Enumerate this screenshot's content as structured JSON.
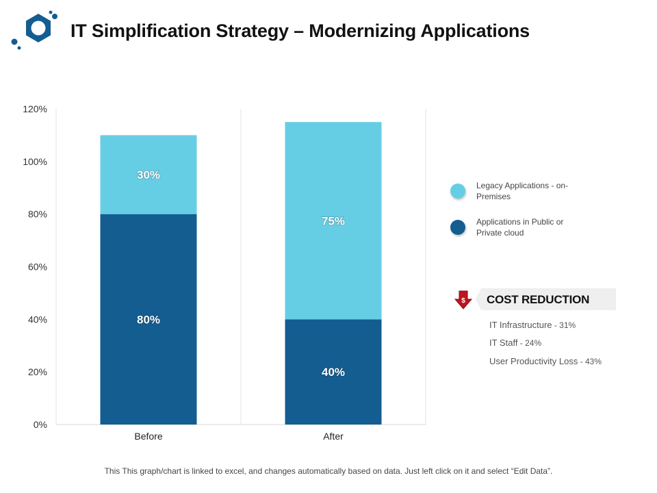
{
  "header": {
    "title": "IT Simplification Strategy – Modernizing Applications"
  },
  "colors": {
    "legacy": "#66CEE4",
    "cloud": "#135D91",
    "logo": "#135D91",
    "alert": "#C0141E"
  },
  "chart_data": {
    "type": "bar",
    "stacked": true,
    "categories": [
      "Before",
      "After"
    ],
    "series": [
      {
        "name": "Applications in Public or Private cloud",
        "values": [
          80,
          40
        ],
        "labels": [
          "80%",
          "40%"
        ],
        "color": "#135D91"
      },
      {
        "name": "Legacy Applications - on-Premises",
        "values": [
          30,
          75
        ],
        "labels": [
          "30%",
          "75%"
        ],
        "color": "#66CEE4"
      }
    ],
    "yticks": [
      "0%",
      "20%",
      "40%",
      "60%",
      "80%",
      "100%",
      "120%"
    ],
    "ylim": [
      0,
      120
    ],
    "legend_position": "right"
  },
  "legend": {
    "items": [
      {
        "label": "Legacy Applications - on-Premises",
        "color": "#66CEE4"
      },
      {
        "label": "Applications in Public or Private cloud",
        "color": "#135D91"
      }
    ]
  },
  "cost_reduction": {
    "title": "COST REDUCTION",
    "icon": "down-arrow-dollar-icon",
    "icon_symbol": "$",
    "items": [
      {
        "label": "IT Infrastructure",
        "value": " - 31%"
      },
      {
        "label": "IT Staff",
        "value": " - 24%"
      },
      {
        "label": "User Productivity Loss",
        "value": " - 43%"
      }
    ]
  },
  "footer": {
    "text": "This This graph/chart is linked to excel, and changes automatically based on data.  Just left click on it and select “Edit Data”."
  }
}
